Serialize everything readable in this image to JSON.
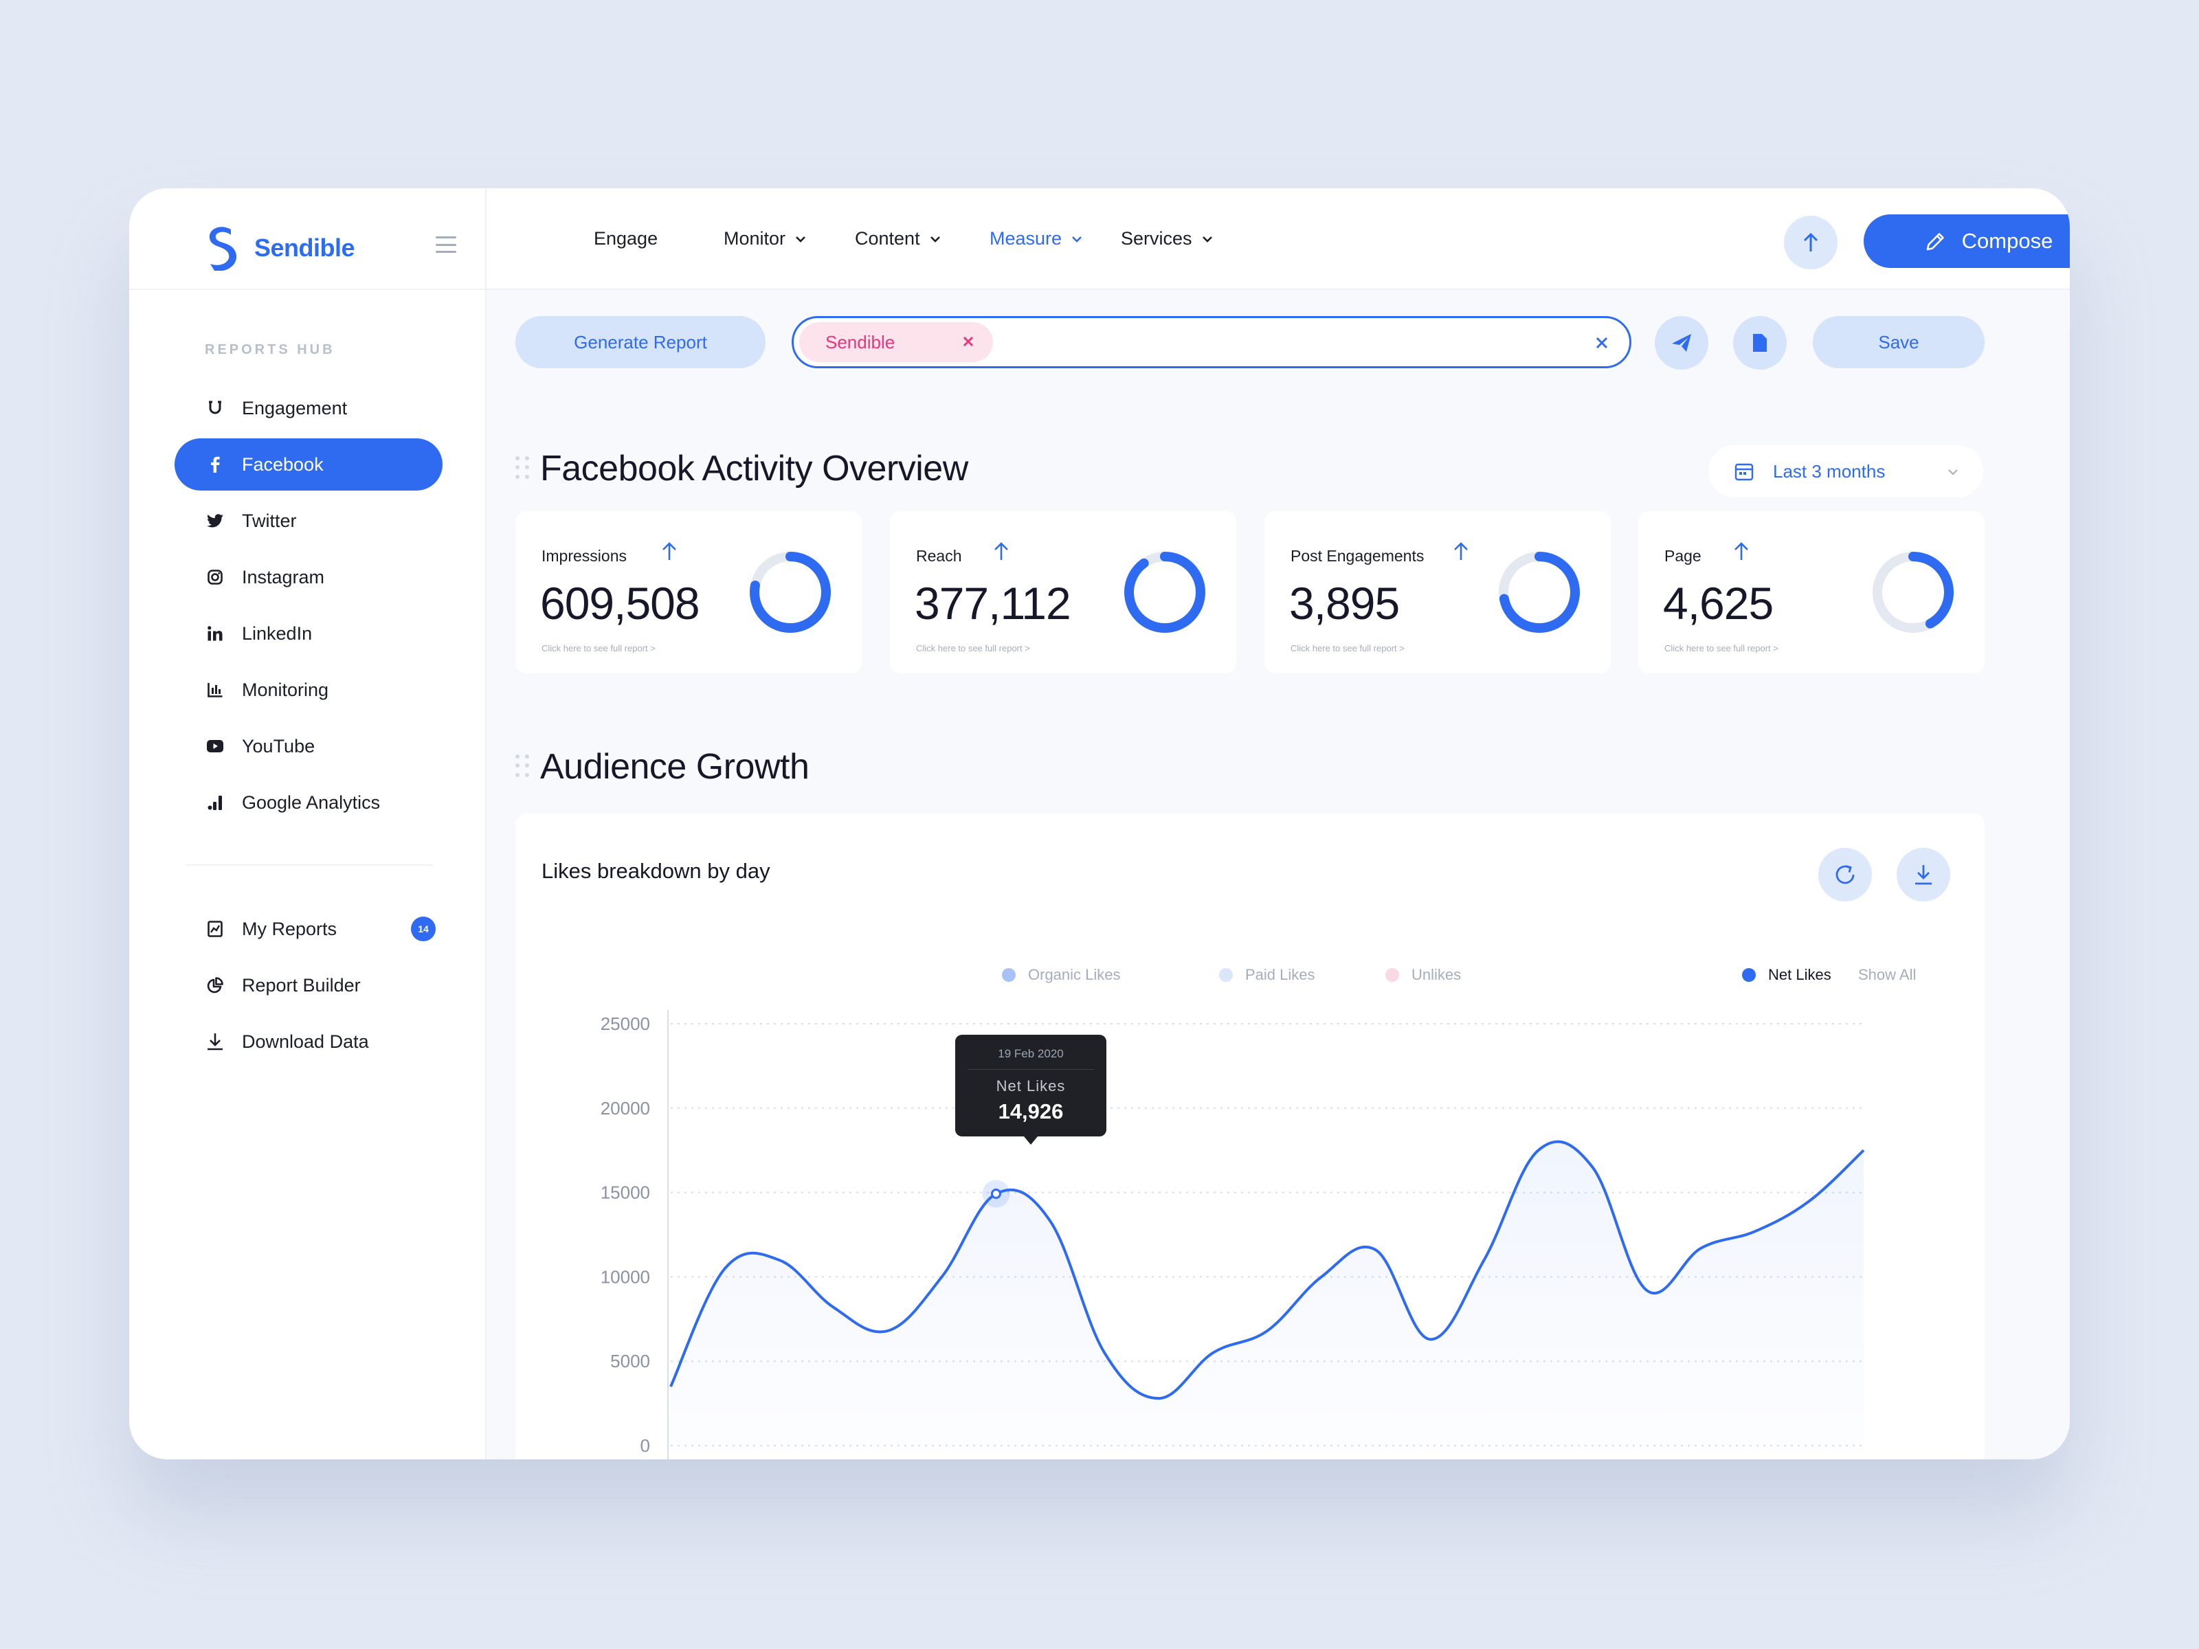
{
  "brand": {
    "name": "Sendible"
  },
  "colors": {
    "accent": "#2f6bf0",
    "tag_text": "#e9357a",
    "tag_bg": "#fde3ec"
  },
  "topnav": {
    "items": [
      {
        "label": "Engage",
        "dropdown": false,
        "active": false
      },
      {
        "label": "Monitor",
        "dropdown": true,
        "active": false
      },
      {
        "label": "Content",
        "dropdown": true,
        "active": false
      },
      {
        "label": "Measure",
        "dropdown": true,
        "active": true
      },
      {
        "label": "Services",
        "dropdown": true,
        "active": false
      }
    ],
    "compose_label": "Compose"
  },
  "sidebar": {
    "hub_title": "REPORTS HUB",
    "items": [
      {
        "label": "Engagement",
        "icon": "magnet-icon",
        "active": false
      },
      {
        "label": "Facebook",
        "icon": "facebook-icon",
        "active": true
      },
      {
        "label": "Twitter",
        "icon": "twitter-icon",
        "active": false
      },
      {
        "label": "Instagram",
        "icon": "instagram-icon",
        "active": false
      },
      {
        "label": "LinkedIn",
        "icon": "linkedin-icon",
        "active": false
      },
      {
        "label": "Monitoring",
        "icon": "bar-chart-icon",
        "active": false
      },
      {
        "label": "YouTube",
        "icon": "youtube-icon",
        "active": false
      },
      {
        "label": "Google Analytics",
        "icon": "analytics-icon",
        "active": false
      }
    ],
    "secondary": [
      {
        "label": "My Reports",
        "icon": "report-icon",
        "badge": "14"
      },
      {
        "label": "Report Builder",
        "icon": "pie-chart-icon"
      },
      {
        "label": "Download Data",
        "icon": "download-icon"
      }
    ]
  },
  "toolbar": {
    "generate_label": "Generate Report",
    "tag_label": "Sendible",
    "save_label": "Save"
  },
  "overview": {
    "title": "Facebook Activity Overview",
    "range_label": "Last 3 months",
    "cards": [
      {
        "label": "Impressions",
        "value": "609,508",
        "link": "Click here to see full report >",
        "ring_fraction": 0.78
      },
      {
        "label": "Reach",
        "value": "377,112",
        "link": "Click here to see full report >",
        "ring_fraction": 0.9
      },
      {
        "label": "Post Engagements",
        "value": "3,895",
        "link": "Click here to see full report >",
        "ring_fraction": 0.72
      },
      {
        "label": "Page",
        "value": "4,625",
        "link": "Click here to see full report >",
        "ring_fraction": 0.42
      }
    ]
  },
  "growth": {
    "title": "Audience Growth",
    "card_title": "Likes breakdown by day",
    "legend": [
      {
        "label": "Organic Likes",
        "color": "#a9c2f5",
        "active": false
      },
      {
        "label": "Paid Likes",
        "color": "#dbe6fb",
        "active": false
      },
      {
        "label": "Unlikes",
        "color": "#fbd9e3",
        "active": false
      },
      {
        "label": "Net Likes",
        "color": "#2f6bf0",
        "active": true
      }
    ],
    "show_all_label": "Show All",
    "tooltip": {
      "date": "19 Feb 2020",
      "series": "Net Likes",
      "value": "14,926"
    }
  },
  "chart_data": {
    "type": "line",
    "ylim": [
      0,
      25000
    ],
    "yticks": [
      "25000",
      "20000",
      "15000",
      "10000",
      "5000",
      "0"
    ],
    "grid": true,
    "legend_position": "top-right",
    "series": [
      {
        "name": "Net Likes",
        "color": "#2f6bf0",
        "values": [
          3500,
          10500,
          11000,
          8200,
          6800,
          10000,
          14926,
          13300,
          5500,
          2800,
          5500,
          6800,
          10000,
          11600,
          6300,
          11000,
          17500,
          16500,
          9200,
          11700,
          12700,
          14500,
          17500
        ]
      }
    ],
    "highlight_index": 6
  }
}
